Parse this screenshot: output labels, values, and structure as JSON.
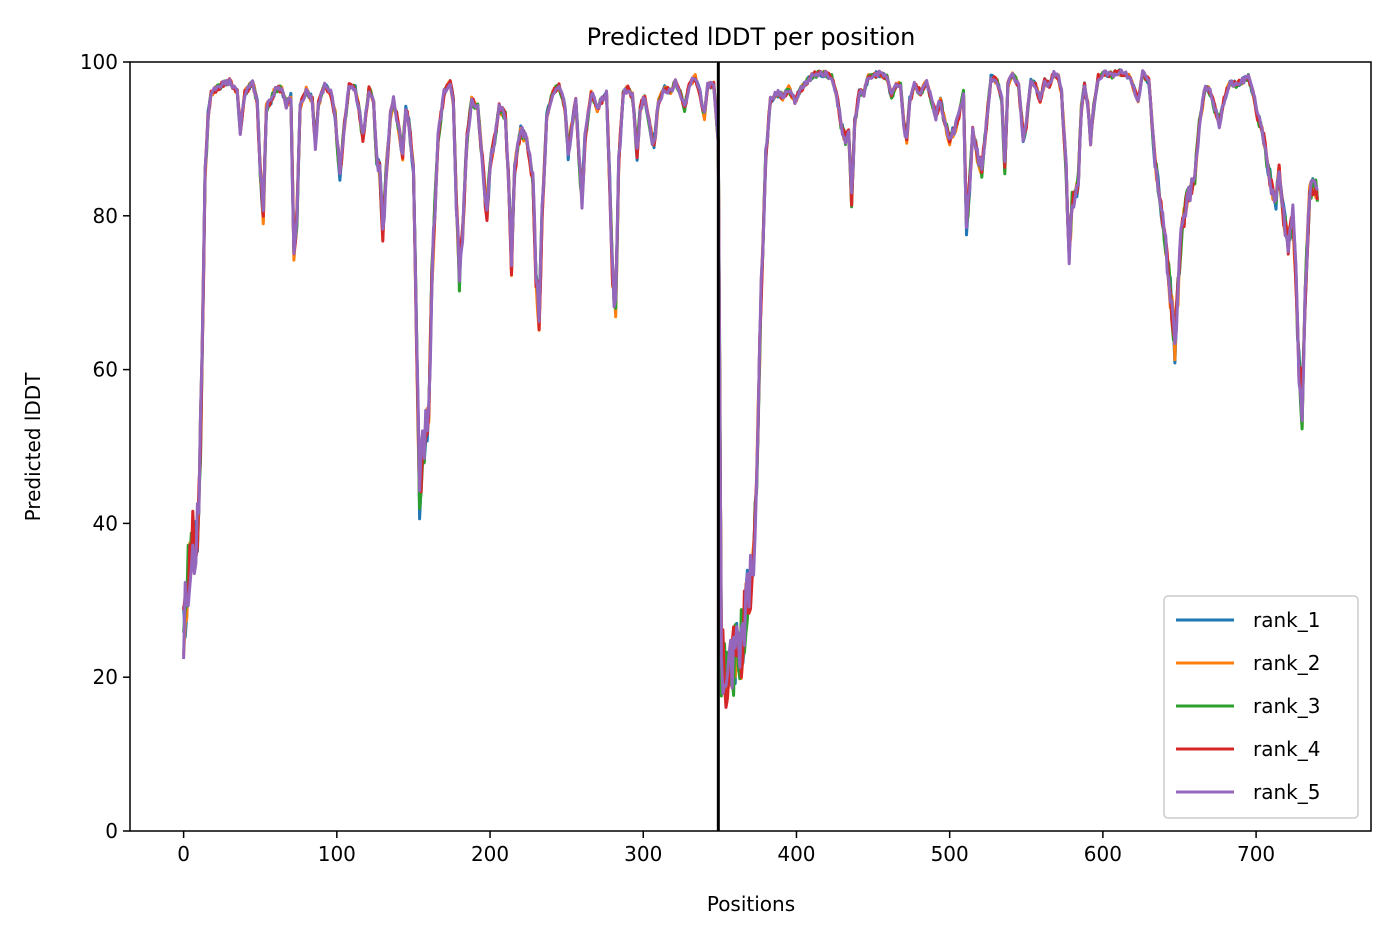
{
  "chart_data": {
    "type": "line",
    "title": "Predicted lDDT per position",
    "xlabel": "Positions",
    "ylabel": "Predicted lDDT",
    "xlim": [
      -35,
      775
    ],
    "ylim": [
      0,
      100
    ],
    "xticks": [
      0,
      100,
      200,
      300,
      400,
      500,
      600,
      700
    ],
    "yticks": [
      0,
      20,
      40,
      60,
      80,
      100
    ],
    "grid": false,
    "legend_position": "lower right",
    "vline_x": 349,
    "series": [
      {
        "name": "rank_1",
        "color": "#1f77b4"
      },
      {
        "name": "rank_2",
        "color": "#ff7f0e"
      },
      {
        "name": "rank_3",
        "color": "#2ca02c"
      },
      {
        "name": "rank_4",
        "color": "#d62728"
      },
      {
        "name": "rank_5",
        "color": "#9467bd"
      }
    ],
    "base_profile": [
      [
        0,
        26
      ],
      [
        3,
        33
      ],
      [
        5,
        38
      ],
      [
        8,
        37
      ],
      [
        10,
        42
      ],
      [
        12,
        60
      ],
      [
        14,
        85
      ],
      [
        16,
        93
      ],
      [
        18,
        96
      ],
      [
        25,
        97
      ],
      [
        30,
        97.5
      ],
      [
        35,
        96
      ],
      [
        37,
        91
      ],
      [
        40,
        96
      ],
      [
        45,
        97.3
      ],
      [
        48,
        95
      ],
      [
        50,
        86
      ],
      [
        52,
        80
      ],
      [
        54,
        94
      ],
      [
        57,
        95
      ],
      [
        60,
        96.5
      ],
      [
        64,
        96.5
      ],
      [
        67,
        94.5
      ],
      [
        70,
        95.5
      ],
      [
        72,
        74.5
      ],
      [
        74,
        80
      ],
      [
        76,
        94
      ],
      [
        80,
        96.5
      ],
      [
        84,
        95
      ],
      [
        86,
        89
      ],
      [
        88,
        94.5
      ],
      [
        92,
        97
      ],
      [
        96,
        96
      ],
      [
        99,
        93
      ],
      [
        102,
        85
      ],
      [
        104,
        90
      ],
      [
        108,
        97
      ],
      [
        112,
        96.5
      ],
      [
        115,
        93
      ],
      [
        117,
        90
      ],
      [
        121,
        96.5
      ],
      [
        124,
        95
      ],
      [
        126,
        87
      ],
      [
        128,
        86
      ],
      [
        130,
        77
      ],
      [
        132,
        85
      ],
      [
        135,
        93
      ],
      [
        137,
        95
      ],
      [
        140,
        92
      ],
      [
        143,
        88
      ],
      [
        145,
        94
      ],
      [
        147,
        92
      ],
      [
        150,
        86
      ],
      [
        152,
        65
      ],
      [
        154,
        44
      ],
      [
        156,
        50
      ],
      [
        158,
        52
      ],
      [
        160,
        53
      ],
      [
        162,
        72
      ],
      [
        166,
        90
      ],
      [
        170,
        96
      ],
      [
        174,
        97.5
      ],
      [
        176,
        95
      ],
      [
        178,
        82
      ],
      [
        180,
        72
      ],
      [
        182,
        78
      ],
      [
        185,
        90
      ],
      [
        188,
        95
      ],
      [
        192,
        94
      ],
      [
        195,
        87
      ],
      [
        198,
        80
      ],
      [
        200,
        87
      ],
      [
        203,
        90
      ],
      [
        206,
        94
      ],
      [
        210,
        93
      ],
      [
        212,
        85
      ],
      [
        214,
        74
      ],
      [
        216,
        86
      ],
      [
        220,
        91
      ],
      [
        224,
        90
      ],
      [
        228,
        85
      ],
      [
        230,
        72
      ],
      [
        232,
        67
      ],
      [
        234,
        80
      ],
      [
        237,
        93
      ],
      [
        241,
        96
      ],
      [
        245,
        97
      ],
      [
        249,
        94
      ],
      [
        251,
        88
      ],
      [
        253,
        91
      ],
      [
        256,
        95
      ],
      [
        258,
        88
      ],
      [
        260,
        82
      ],
      [
        262,
        90
      ],
      [
        266,
        96
      ],
      [
        270,
        94
      ],
      [
        273,
        95
      ],
      [
        276,
        96
      ],
      [
        278,
        85
      ],
      [
        280,
        72
      ],
      [
        282,
        68
      ],
      [
        284,
        87
      ],
      [
        287,
        96
      ],
      [
        290,
        96.5
      ],
      [
        293,
        95.5
      ],
      [
        296,
        88
      ],
      [
        298,
        94
      ],
      [
        301,
        95.5
      ],
      [
        304,
        92
      ],
      [
        307,
        89
      ],
      [
        310,
        95
      ],
      [
        314,
        96.5
      ],
      [
        318,
        96
      ],
      [
        321,
        97.5
      ],
      [
        324,
        96
      ],
      [
        327,
        94
      ],
      [
        330,
        97
      ],
      [
        334,
        98
      ],
      [
        337,
        96
      ],
      [
        340,
        93
      ],
      [
        342,
        97
      ],
      [
        346,
        97
      ],
      [
        349,
        90
      ],
      [
        351,
        22
      ],
      [
        353,
        21
      ],
      [
        356,
        20
      ],
      [
        359,
        22
      ],
      [
        362,
        23
      ],
      [
        365,
        25
      ],
      [
        368,
        30
      ],
      [
        371,
        33
      ],
      [
        374,
        45
      ],
      [
        377,
        70
      ],
      [
        380,
        88
      ],
      [
        383,
        95
      ],
      [
        387,
        96
      ],
      [
        391,
        95.5
      ],
      [
        395,
        96.5
      ],
      [
        399,
        95
      ],
      [
        403,
        96.5
      ],
      [
        407,
        97.5
      ],
      [
        411,
        98.3
      ],
      [
        415,
        98.5
      ],
      [
        419,
        98.4
      ],
      [
        423,
        98
      ],
      [
        426,
        96
      ],
      [
        429,
        92
      ],
      [
        432,
        90
      ],
      [
        434,
        91
      ],
      [
        436,
        82
      ],
      [
        438,
        92
      ],
      [
        441,
        96
      ],
      [
        444,
        96
      ],
      [
        447,
        98
      ],
      [
        451,
        98.3
      ],
      [
        455,
        98.5
      ],
      [
        459,
        98
      ],
      [
        462,
        95.5
      ],
      [
        465,
        97
      ],
      [
        468,
        97
      ],
      [
        470,
        92
      ],
      [
        472,
        90
      ],
      [
        474,
        95
      ],
      [
        477,
        97
      ],
      [
        481,
        96
      ],
      [
        485,
        97.5
      ],
      [
        488,
        95
      ],
      [
        491,
        93
      ],
      [
        494,
        95
      ],
      [
        497,
        92
      ],
      [
        500,
        90
      ],
      [
        503,
        91
      ],
      [
        506,
        93
      ],
      [
        509,
        96
      ],
      [
        511,
        78
      ],
      [
        513,
        84
      ],
      [
        515,
        91
      ],
      [
        518,
        88
      ],
      [
        521,
        86
      ],
      [
        524,
        92
      ],
      [
        527,
        98
      ],
      [
        531,
        97.5
      ],
      [
        534,
        95
      ],
      [
        536,
        86
      ],
      [
        538,
        97
      ],
      [
        541,
        98.5
      ],
      [
        545,
        97
      ],
      [
        548,
        90
      ],
      [
        550,
        92
      ],
      [
        553,
        97.5
      ],
      [
        556,
        97
      ],
      [
        559,
        95
      ],
      [
        562,
        97.5
      ],
      [
        565,
        97
      ],
      [
        568,
        98.5
      ],
      [
        571,
        98
      ],
      [
        573,
        96
      ],
      [
        576,
        86
      ],
      [
        578,
        75
      ],
      [
        580,
        82
      ],
      [
        582,
        82
      ],
      [
        584,
        85
      ],
      [
        586,
        94
      ],
      [
        588,
        97
      ],
      [
        590,
        94.5
      ],
      [
        592,
        90
      ],
      [
        594,
        94
      ],
      [
        597,
        98
      ],
      [
        601,
        98.5
      ],
      [
        606,
        98.3
      ],
      [
        610,
        98.7
      ],
      [
        614,
        98.5
      ],
      [
        618,
        98
      ],
      [
        621,
        96
      ],
      [
        623,
        95
      ],
      [
        626,
        98.5
      ],
      [
        630,
        97.5
      ],
      [
        632,
        92
      ],
      [
        634,
        87
      ],
      [
        637,
        83
      ],
      [
        640,
        78
      ],
      [
        643,
        72
      ],
      [
        645,
        68
      ],
      [
        647,
        63
      ],
      [
        649,
        70
      ],
      [
        651,
        77
      ],
      [
        653,
        80
      ],
      [
        655,
        82
      ],
      [
        657,
        83
      ],
      [
        660,
        85
      ],
      [
        663,
        92
      ],
      [
        667,
        97
      ],
      [
        670,
        96
      ],
      [
        673,
        94
      ],
      [
        676,
        92
      ],
      [
        679,
        95
      ],
      [
        683,
        97.5
      ],
      [
        687,
        97
      ],
      [
        691,
        97.5
      ],
      [
        695,
        98
      ],
      [
        698,
        96
      ],
      [
        701,
        93
      ],
      [
        705,
        90
      ],
      [
        708,
        86
      ],
      [
        710,
        84
      ],
      [
        713,
        82
      ],
      [
        715,
        86
      ],
      [
        718,
        80
      ],
      [
        721,
        76
      ],
      [
        724,
        80
      ],
      [
        726,
        72
      ],
      [
        728,
        60
      ],
      [
        730,
        55
      ],
      [
        732,
        70
      ],
      [
        735,
        83
      ],
      [
        738,
        84
      ],
      [
        740,
        83
      ]
    ]
  }
}
